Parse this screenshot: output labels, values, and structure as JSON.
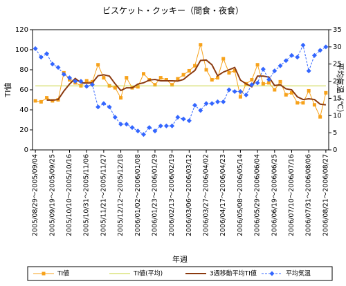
{
  "chart_data": {
    "type": "line",
    "title": "ビスケット・クッキー（間食・夜食）",
    "x_label": "年週",
    "y_label": "TI値",
    "y2_label": "平均気温（℃）",
    "categories": [
      "2005/08/29～2005/09/04",
      null,
      null,
      "2005/09/19～2005/09/25",
      null,
      null,
      "2005/10/10～2005/10/16",
      null,
      null,
      "2005/10/31～2005/11/06",
      null,
      null,
      "2005/11/21～2005/11/27",
      null,
      null,
      "2005/12/12～2005/12/18",
      null,
      null,
      "2006/01/02～2006/01/08",
      null,
      null,
      "2006/01/23～2006/01/29",
      null,
      null,
      "2006/02/13～2006/02/19",
      null,
      null,
      "2006/03/06～2006/03/12",
      null,
      null,
      "2006/03/27～2006/04/02",
      null,
      null,
      "2006/04/17～2006/04/23",
      null,
      null,
      "2006/05/08～2006/05/14",
      null,
      null,
      "2006/05/29～2006/06/04",
      null,
      null,
      "2006/06/19～2006/06/25",
      null,
      null,
      "2006/07/10～2006/07/16",
      null,
      null,
      "2006/07/31～2006/08/06",
      null,
      null,
      "2006/08/21～2006/08/27"
    ],
    "series": [
      {
        "name": "TI値",
        "color": "#f7a21b",
        "marker": "square",
        "values": [
          49,
          48,
          52,
          49,
          50,
          77,
          70,
          67,
          64,
          69,
          68,
          85,
          72,
          64,
          62,
          52,
          72,
          62,
          63,
          76,
          70,
          65,
          72,
          70,
          65,
          71,
          75,
          79,
          84,
          105,
          80,
          70,
          72,
          91,
          77,
          79,
          53,
          66,
          70,
          85,
          66,
          67,
          60,
          68,
          55,
          57,
          47,
          47,
          59,
          45,
          33,
          57
        ]
      },
      {
        "name": "TI値(平均)",
        "color": "#c8d43a",
        "values": [
          64,
          64,
          64,
          64,
          64,
          64,
          64,
          64,
          64,
          64,
          64,
          64,
          64,
          64,
          64,
          64,
          64,
          64,
          64,
          64,
          64,
          64,
          64,
          64,
          64,
          64,
          64,
          64,
          64,
          64,
          64,
          64,
          64,
          64,
          64,
          64,
          64,
          64,
          64,
          64,
          64,
          64,
          64,
          64,
          64,
          64,
          64,
          64,
          64,
          64,
          64,
          64
        ]
      },
      {
        "name": "3週移動平均TI値",
        "color": "#8b3a0f",
        "width": 2,
        "values": [
          null,
          null,
          49.7,
          49.7,
          50.3,
          58.7,
          65.7,
          71.3,
          67,
          66.7,
          67,
          74,
          75,
          73.7,
          66,
          59.3,
          62,
          62,
          65.7,
          67,
          69.7,
          70.3,
          69,
          69,
          69,
          68.7,
          70.3,
          75,
          79.3,
          89.3,
          89.7,
          85,
          74,
          77.7,
          80,
          82.3,
          69.7,
          66,
          63,
          73.7,
          73.7,
          72.7,
          64.3,
          65,
          61,
          60,
          53,
          50.3,
          51,
          50.3,
          45.7,
          45
        ]
      },
      {
        "name": "平均気温",
        "color": "#3366ff",
        "marker": "diamond",
        "dashed": true,
        "axis": "y2",
        "values": [
          29.5,
          27,
          28,
          25,
          24,
          22,
          21,
          20,
          20,
          18.5,
          19,
          12.5,
          13.5,
          12.5,
          9.5,
          7.5,
          7.5,
          6.5,
          5.5,
          4.5,
          6.5,
          5.5,
          7,
          7,
          7,
          9.5,
          9,
          8.5,
          13,
          11.5,
          13.5,
          13.5,
          14,
          14,
          17.5,
          17,
          17,
          16,
          19,
          19.5,
          23.5,
          20.5,
          23,
          24.5,
          26,
          27.5,
          27,
          30.5,
          23,
          27.5,
          29,
          30
        ]
      }
    ],
    "ylim": [
      0,
      120
    ],
    "yticks": [
      0,
      20,
      40,
      60,
      80,
      100,
      120
    ],
    "y2lim": [
      0,
      35
    ],
    "y2ticks": [
      0,
      5,
      10,
      15,
      20,
      25,
      30,
      35
    ],
    "grid": false,
    "legend": "bottom"
  }
}
